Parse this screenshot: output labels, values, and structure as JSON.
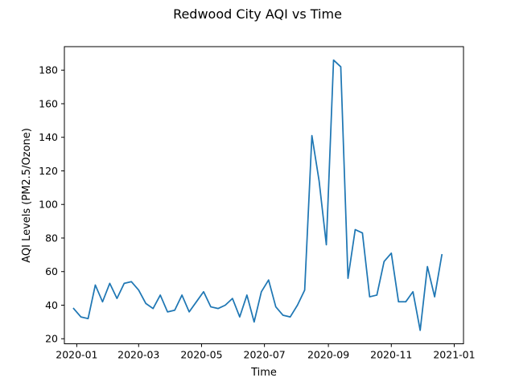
{
  "chart_data": {
    "type": "line",
    "title": "Redwood City AQI vs Time",
    "xlabel": "Time",
    "ylabel": "AQI Levels (PM2.5/Ozone)",
    "xlim": [
      "2019-12-20",
      "2021-01-10"
    ],
    "ylim": [
      17,
      194
    ],
    "xticks": [
      "2020-01",
      "2020-03",
      "2020-05",
      "2020-07",
      "2020-09",
      "2020-11",
      "2021-01"
    ],
    "xtick_dates": [
      "2020-01-01",
      "2020-03-01",
      "2020-05-01",
      "2020-07-01",
      "2020-09-01",
      "2020-11-01",
      "2021-01-01"
    ],
    "yticks": [
      20,
      40,
      60,
      80,
      100,
      120,
      140,
      160,
      180
    ],
    "grid": false,
    "color": "#1f77b4",
    "series": [
      {
        "x": [
          "2019-12-29",
          "2020-01-05",
          "2020-01-12",
          "2020-01-19",
          "2020-01-26",
          "2020-02-02",
          "2020-02-09",
          "2020-02-16",
          "2020-02-23",
          "2020-03-01",
          "2020-03-08",
          "2020-03-15",
          "2020-03-22",
          "2020-03-29",
          "2020-04-05",
          "2020-04-12",
          "2020-04-19",
          "2020-04-26",
          "2020-05-03",
          "2020-05-10",
          "2020-05-17",
          "2020-05-24",
          "2020-05-31",
          "2020-06-07",
          "2020-06-14",
          "2020-06-21",
          "2020-06-28",
          "2020-07-05",
          "2020-07-12",
          "2020-07-19",
          "2020-07-26",
          "2020-08-02",
          "2020-08-09",
          "2020-08-16",
          "2020-08-23",
          "2020-08-30",
          "2020-09-06",
          "2020-09-13",
          "2020-09-20",
          "2020-09-27",
          "2020-10-04",
          "2020-10-11",
          "2020-10-18",
          "2020-10-25",
          "2020-11-01",
          "2020-11-08",
          "2020-11-15",
          "2020-11-22",
          "2020-11-29",
          "2020-12-06",
          "2020-12-13",
          "2020-12-20"
        ],
        "y": [
          38,
          33,
          32,
          52,
          42,
          53,
          44,
          53,
          54,
          49,
          41,
          38,
          46,
          36,
          37,
          46,
          36,
          42,
          48,
          39,
          38,
          40,
          44,
          33,
          46,
          30,
          48,
          55,
          39,
          34,
          33,
          40,
          49,
          141,
          114,
          76,
          186,
          182,
          56,
          85,
          83,
          45,
          46,
          66,
          71,
          42,
          42,
          48,
          25,
          63,
          45,
          70
        ]
      }
    ]
  }
}
